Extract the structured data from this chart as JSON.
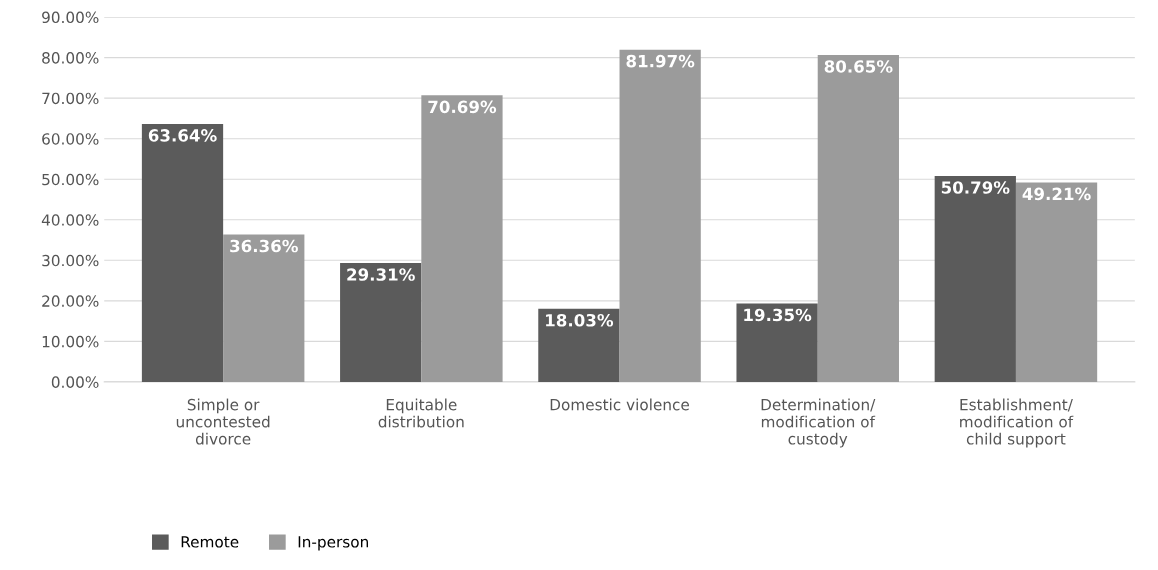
{
  "chart_data": {
    "type": "bar",
    "categories": [
      "Simple or\nuncontested\ndivorce",
      "Equitable\ndistribution",
      "Domestic violence",
      "Determination/\nmodification of\ncustody",
      "Establishment/\nmodification of\nchild support"
    ],
    "series": [
      {
        "name": "Remote",
        "color": "#5b5b5b",
        "values": [
          63.64,
          29.31,
          18.03,
          19.35,
          50.79
        ],
        "value_labels": [
          "63.64%",
          "29.31%",
          "18.03%",
          "19.35%",
          "50.79%"
        ]
      },
      {
        "name": "In-person",
        "color": "#9b9b9b",
        "values": [
          36.36,
          70.69,
          81.97,
          80.65,
          49.21
        ],
        "value_labels": [
          "36.36%",
          "70.69%",
          "81.97%",
          "80.65%",
          "49.21%"
        ]
      }
    ],
    "ylim": [
      0,
      90
    ],
    "yticks": [
      {
        "value": 0,
        "label": "0.00%"
      },
      {
        "value": 10,
        "label": "10.00%"
      },
      {
        "value": 20,
        "label": "20.00%"
      },
      {
        "value": 30,
        "label": "30.00%"
      },
      {
        "value": 40,
        "label": "40.00%"
      },
      {
        "value": 50,
        "label": "50.00%"
      },
      {
        "value": 60,
        "label": "60.00%"
      },
      {
        "value": 70,
        "label": "70.00%"
      },
      {
        "value": 80,
        "label": "80.00%"
      },
      {
        "value": 90,
        "label": "90.00%"
      }
    ],
    "grid": "y",
    "legend": "bottom left"
  }
}
